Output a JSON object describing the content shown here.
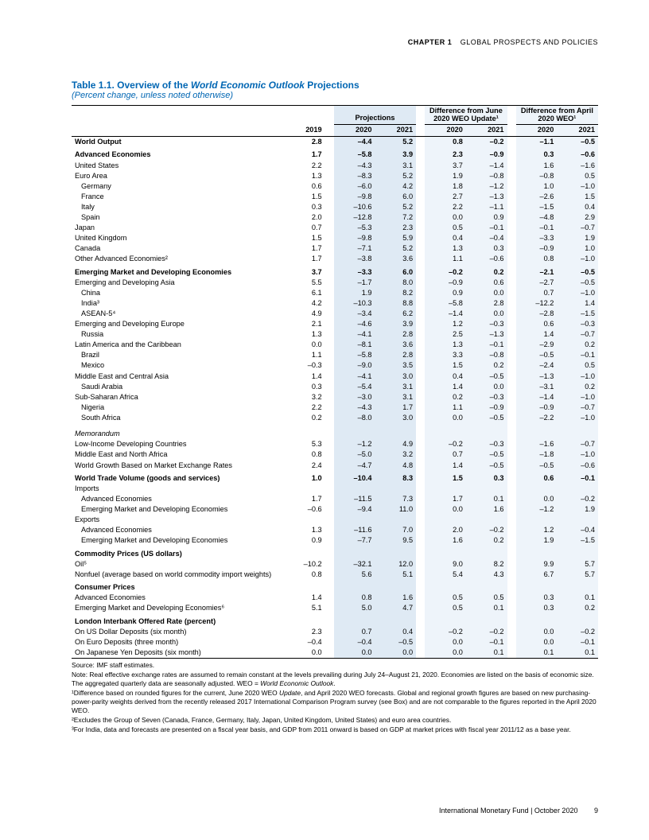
{
  "header": {
    "chapter": "CHAPTER 1",
    "title": "GLOBAL PROSPECTS AND POLICIES"
  },
  "table_title_a": "Table 1.1. Overview of the ",
  "table_title_b": "World Economic Outlook",
  "table_title_c": " Projections",
  "subtitle": "(Percent change, unless noted otherwise)",
  "headers": {
    "proj": "Projections",
    "diffJune": "Difference from June 2020 WEO Update¹",
    "diffApril": "Difference from April 2020 WEO¹",
    "y2019": "2019",
    "y2020": "2020",
    "y2021": "2021"
  },
  "rows": [
    {
      "l": "World Output",
      "b": 1,
      "i": 0,
      "v": [
        "2.8",
        "–4.4",
        "5.2",
        "0.8",
        "–0.2",
        "–1.1",
        "–0.5"
      ]
    },
    {
      "l": "Advanced Economies",
      "b": 1,
      "i": 0,
      "gap": 1,
      "v": [
        "1.7",
        "–5.8",
        "3.9",
        "2.3",
        "–0.9",
        "0.3",
        "–0.6"
      ]
    },
    {
      "l": "United States",
      "b": 0,
      "i": 0,
      "v": [
        "2.2",
        "–4.3",
        "3.1",
        "3.7",
        "–1.4",
        "1.6",
        "–1.6"
      ]
    },
    {
      "l": "Euro Area",
      "b": 0,
      "i": 0,
      "v": [
        "1.3",
        "–8.3",
        "5.2",
        "1.9",
        "–0.8",
        "–0.8",
        "0.5"
      ]
    },
    {
      "l": "Germany",
      "b": 0,
      "i": 1,
      "v": [
        "0.6",
        "–6.0",
        "4.2",
        "1.8",
        "–1.2",
        "1.0",
        "–1.0"
      ]
    },
    {
      "l": "France",
      "b": 0,
      "i": 1,
      "v": [
        "1.5",
        "–9.8",
        "6.0",
        "2.7",
        "–1.3",
        "–2.6",
        "1.5"
      ]
    },
    {
      "l": "Italy",
      "b": 0,
      "i": 1,
      "v": [
        "0.3",
        "–10.6",
        "5.2",
        "2.2",
        "–1.1",
        "–1.5",
        "0.4"
      ]
    },
    {
      "l": "Spain",
      "b": 0,
      "i": 1,
      "v": [
        "2.0",
        "–12.8",
        "7.2",
        "0.0",
        "0.9",
        "–4.8",
        "2.9"
      ]
    },
    {
      "l": "Japan",
      "b": 0,
      "i": 0,
      "v": [
        "0.7",
        "–5.3",
        "2.3",
        "0.5",
        "–0.1",
        "–0.1",
        "–0.7"
      ]
    },
    {
      "l": "United Kingdom",
      "b": 0,
      "i": 0,
      "v": [
        "1.5",
        "–9.8",
        "5.9",
        "0.4",
        "–0.4",
        "–3.3",
        "1.9"
      ]
    },
    {
      "l": "Canada",
      "b": 0,
      "i": 0,
      "v": [
        "1.7",
        "–7.1",
        "5.2",
        "1.3",
        "0.3",
        "–0.9",
        "1.0"
      ]
    },
    {
      "l": "Other Advanced Economies²",
      "b": 0,
      "i": 0,
      "v": [
        "1.7",
        "–3.8",
        "3.6",
        "1.1",
        "–0.6",
        "0.8",
        "–1.0"
      ]
    },
    {
      "l": "Emerging Market and Developing Economies",
      "b": 1,
      "i": 0,
      "gap": 1,
      "v": [
        "3.7",
        "–3.3",
        "6.0",
        "–0.2",
        "0.2",
        "–2.1",
        "–0.5"
      ]
    },
    {
      "l": "Emerging and Developing Asia",
      "b": 0,
      "i": 0,
      "v": [
        "5.5",
        "–1.7",
        "8.0",
        "–0.9",
        "0.6",
        "–2.7",
        "–0.5"
      ]
    },
    {
      "l": "China",
      "b": 0,
      "i": 1,
      "v": [
        "6.1",
        "1.9",
        "8.2",
        "0.9",
        "0.0",
        "0.7",
        "–1.0"
      ]
    },
    {
      "l": "India³",
      "b": 0,
      "i": 1,
      "v": [
        "4.2",
        "–10.3",
        "8.8",
        "–5.8",
        "2.8",
        "–12.2",
        "1.4"
      ]
    },
    {
      "l": "ASEAN-5⁴",
      "b": 0,
      "i": 1,
      "v": [
        "4.9",
        "–3.4",
        "6.2",
        "–1.4",
        "0.0",
        "–2.8",
        "–1.5"
      ]
    },
    {
      "l": "Emerging and Developing Europe",
      "b": 0,
      "i": 0,
      "v": [
        "2.1",
        "–4.6",
        "3.9",
        "1.2",
        "–0.3",
        "0.6",
        "–0.3"
      ]
    },
    {
      "l": "Russia",
      "b": 0,
      "i": 1,
      "v": [
        "1.3",
        "–4.1",
        "2.8",
        "2.5",
        "–1.3",
        "1.4",
        "–0.7"
      ]
    },
    {
      "l": "Latin America and the Caribbean",
      "b": 0,
      "i": 0,
      "v": [
        "0.0",
        "–8.1",
        "3.6",
        "1.3",
        "–0.1",
        "–2.9",
        "0.2"
      ]
    },
    {
      "l": "Brazil",
      "b": 0,
      "i": 1,
      "v": [
        "1.1",
        "–5.8",
        "2.8",
        "3.3",
        "–0.8",
        "–0.5",
        "–0.1"
      ]
    },
    {
      "l": "Mexico",
      "b": 0,
      "i": 1,
      "v": [
        "–0.3",
        "–9.0",
        "3.5",
        "1.5",
        "0.2",
        "–2.4",
        "0.5"
      ]
    },
    {
      "l": "Middle East and Central Asia",
      "b": 0,
      "i": 0,
      "v": [
        "1.4",
        "–4.1",
        "3.0",
        "0.4",
        "–0.5",
        "–1.3",
        "–1.0"
      ]
    },
    {
      "l": "Saudi Arabia",
      "b": 0,
      "i": 1,
      "v": [
        "0.3",
        "–5.4",
        "3.1",
        "1.4",
        "0.0",
        "–3.1",
        "0.2"
      ]
    },
    {
      "l": "Sub-Saharan Africa",
      "b": 0,
      "i": 0,
      "v": [
        "3.2",
        "–3.0",
        "3.1",
        "0.2",
        "–0.3",
        "–1.4",
        "–1.0"
      ]
    },
    {
      "l": "Nigeria",
      "b": 0,
      "i": 1,
      "v": [
        "2.2",
        "–4.3",
        "1.7",
        "1.1",
        "–0.9",
        "–0.9",
        "–0.7"
      ]
    },
    {
      "l": "South Africa",
      "b": 0,
      "i": 1,
      "v": [
        "0.2",
        "–8.0",
        "3.0",
        "0.0",
        "–0.5",
        "–2.2",
        "–1.0"
      ]
    },
    {
      "l": "Memorandum",
      "memo": 1
    },
    {
      "l": "Low-Income Developing Countries",
      "b": 0,
      "i": 0,
      "v": [
        "5.3",
        "–1.2",
        "4.9",
        "–0.2",
        "–0.3",
        "–1.6",
        "–0.7"
      ]
    },
    {
      "l": "Middle East and North Africa",
      "b": 0,
      "i": 0,
      "v": [
        "0.8",
        "–5.0",
        "3.2",
        "0.7",
        "–0.5",
        "–1.8",
        "–1.0"
      ]
    },
    {
      "l": "World Growth Based on Market Exchange Rates",
      "b": 0,
      "i": 0,
      "v": [
        "2.4",
        "–4.7",
        "4.8",
        "1.4",
        "–0.5",
        "–0.5",
        "–0.6"
      ]
    },
    {
      "l": "World Trade Volume (goods and services)",
      "b": 1,
      "i": 0,
      "gap": 1,
      "v": [
        "1.0",
        "–10.4",
        "8.3",
        "1.5",
        "0.3",
        "0.6",
        "–0.1"
      ]
    },
    {
      "l": "Imports",
      "b": 0,
      "i": 0
    },
    {
      "l": "Advanced Economies",
      "b": 0,
      "i": 1,
      "v": [
        "1.7",
        "–11.5",
        "7.3",
        "1.7",
        "0.1",
        "0.0",
        "–0.2"
      ]
    },
    {
      "l": "Emerging Market and Developing Economies",
      "b": 0,
      "i": 1,
      "v": [
        "–0.6",
        "–9.4",
        "11.0",
        "0.0",
        "1.6",
        "–1.2",
        "1.9"
      ]
    },
    {
      "l": "Exports",
      "b": 0,
      "i": 0
    },
    {
      "l": "Advanced Economies",
      "b": 0,
      "i": 1,
      "v": [
        "1.3",
        "–11.6",
        "7.0",
        "2.0",
        "–0.2",
        "1.2",
        "–0.4"
      ]
    },
    {
      "l": "Emerging Market and Developing Economies",
      "b": 0,
      "i": 1,
      "v": [
        "0.9",
        "–7.7",
        "9.5",
        "1.6",
        "0.2",
        "1.9",
        "–1.5"
      ]
    },
    {
      "l": "Commodity Prices (US dollars)",
      "b": 1,
      "i": 0,
      "gap": 1
    },
    {
      "l": "Oil⁵",
      "b": 0,
      "i": 0,
      "v": [
        "–10.2",
        "–32.1",
        "12.0",
        "9.0",
        "8.2",
        "9.9",
        "5.7"
      ]
    },
    {
      "l": "Nonfuel (average based on world commodity import weights)",
      "b": 0,
      "i": 0,
      "wrap": 1,
      "v": [
        "0.8",
        "5.6",
        "5.1",
        "5.4",
        "4.3",
        "6.7",
        "5.7"
      ]
    },
    {
      "l": "Consumer Prices",
      "b": 1,
      "i": 0,
      "gap": 1
    },
    {
      "l": "Advanced Economies",
      "b": 0,
      "i": 0,
      "v": [
        "1.4",
        "0.8",
        "1.6",
        "0.5",
        "0.5",
        "0.3",
        "0.1"
      ]
    },
    {
      "l": "Emerging Market and Developing Economies⁶",
      "b": 0,
      "i": 0,
      "v": [
        "5.1",
        "5.0",
        "4.7",
        "0.5",
        "0.1",
        "0.3",
        "0.2"
      ]
    },
    {
      "l": "London Interbank Offered Rate (percent)",
      "b": 1,
      "i": 0,
      "gap": 1
    },
    {
      "l": "On US Dollar Deposits (six month)",
      "b": 0,
      "i": 0,
      "v": [
        "2.3",
        "0.7",
        "0.4",
        "–0.2",
        "–0.2",
        "0.0",
        "–0.2"
      ]
    },
    {
      "l": "On Euro Deposits (three month)",
      "b": 0,
      "i": 0,
      "v": [
        "–0.4",
        "–0.4",
        "–0.5",
        "0.0",
        "–0.1",
        "0.0",
        "–0.1"
      ]
    },
    {
      "l": "On Japanese Yen Deposits (six month)",
      "b": 0,
      "i": 0,
      "v": [
        "0.0",
        "0.0",
        "0.0",
        "0.0",
        "0.1",
        "0.1",
        "0.1"
      ]
    }
  ],
  "notes": [
    "Source: IMF staff estimates.",
    "Note: Real effective exchange rates are assumed to remain constant at the levels prevailing during July 24–August 21, 2020. Economies are listed on the basis of economic size. The aggregated quarterly data are seasonally adjusted. WEO = World Economic Outlook.",
    "¹Difference based on rounded figures for the current, June 2020 WEO Update, and April 2020 WEO forecasts. Global and regional growth figures are based on new purchasing-power-parity weights derived from the recently released 2017 International Comparison Program survey (see Box) and are not comparable to the figures reported in the April 2020 WEO.",
    "²Excludes the Group of Seven (Canada, France, Germany, Italy, Japan, United Kingdom, United States) and euro area countries.",
    "³For India, data and forecasts are presented on a fiscal year basis, and GDP from 2011 onward is based on GDP at market prices with fiscal year 2011/12 as a base year."
  ],
  "footer": {
    "org": "International Monetary Fund | October 2020",
    "page": "9"
  }
}
